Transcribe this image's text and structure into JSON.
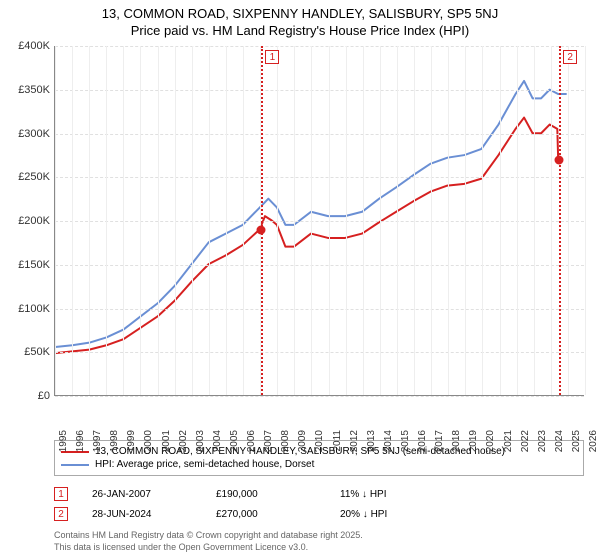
{
  "title_line1": "13, COMMON ROAD, SIXPENNY HANDLEY, SALISBURY, SP5 5NJ",
  "title_line2": "Price paid vs. HM Land Registry's House Price Index (HPI)",
  "chart": {
    "type": "line",
    "x_years": [
      1995,
      1996,
      1997,
      1998,
      1999,
      2000,
      2001,
      2002,
      2003,
      2004,
      2005,
      2006,
      2007,
      2008,
      2009,
      2010,
      2011,
      2012,
      2013,
      2014,
      2015,
      2016,
      2017,
      2018,
      2019,
      2020,
      2021,
      2022,
      2023,
      2024,
      2025,
      2026
    ],
    "x_domain": [
      1995,
      2026
    ],
    "y_domain": [
      0,
      400000
    ],
    "y_ticks": [
      0,
      50000,
      100000,
      150000,
      200000,
      250000,
      300000,
      350000,
      400000
    ],
    "y_tick_labels": [
      "£0",
      "£50K",
      "£100K",
      "£150K",
      "£200K",
      "£250K",
      "£300K",
      "£350K",
      "£400K"
    ],
    "grid_color": "#e0e0e0",
    "background": "#ffffff",
    "series": {
      "hpi": {
        "label": "HPI: Average price, semi-detached house, Dorset",
        "color": "#6a8fd4",
        "width": 2,
        "points": [
          [
            1995,
            55000
          ],
          [
            1996,
            57000
          ],
          [
            1997,
            60000
          ],
          [
            1998,
            66000
          ],
          [
            1999,
            75000
          ],
          [
            2000,
            90000
          ],
          [
            2001,
            105000
          ],
          [
            2002,
            125000
          ],
          [
            2003,
            150000
          ],
          [
            2004,
            175000
          ],
          [
            2005,
            185000
          ],
          [
            2006,
            195000
          ],
          [
            2007,
            215000
          ],
          [
            2007.5,
            225000
          ],
          [
            2008,
            215000
          ],
          [
            2008.5,
            195000
          ],
          [
            2009,
            195000
          ],
          [
            2010,
            210000
          ],
          [
            2011,
            205000
          ],
          [
            2012,
            205000
          ],
          [
            2013,
            210000
          ],
          [
            2014,
            225000
          ],
          [
            2015,
            238000
          ],
          [
            2016,
            252000
          ],
          [
            2017,
            265000
          ],
          [
            2018,
            272000
          ],
          [
            2019,
            275000
          ],
          [
            2020,
            282000
          ],
          [
            2021,
            310000
          ],
          [
            2022,
            345000
          ],
          [
            2022.5,
            360000
          ],
          [
            2023,
            340000
          ],
          [
            2023.5,
            340000
          ],
          [
            2024,
            350000
          ],
          [
            2024.5,
            345000
          ],
          [
            2025,
            345000
          ]
        ]
      },
      "property": {
        "label": "13, COMMON ROAD, SIXPENNY HANDLEY, SALISBURY, SP5 5NJ (semi-detached house)",
        "color": "#d62020",
        "width": 2,
        "points": [
          [
            1995,
            48000
          ],
          [
            1996,
            50000
          ],
          [
            1997,
            52000
          ],
          [
            1998,
            57000
          ],
          [
            1999,
            64000
          ],
          [
            2000,
            77000
          ],
          [
            2001,
            90000
          ],
          [
            2002,
            108000
          ],
          [
            2003,
            130000
          ],
          [
            2004,
            150000
          ],
          [
            2005,
            160000
          ],
          [
            2006,
            172000
          ],
          [
            2007,
            190000
          ],
          [
            2007.3,
            205000
          ],
          [
            2007.7,
            200000
          ],
          [
            2008,
            195000
          ],
          [
            2008.5,
            170000
          ],
          [
            2009,
            170000
          ],
          [
            2010,
            185000
          ],
          [
            2011,
            180000
          ],
          [
            2012,
            180000
          ],
          [
            2013,
            185000
          ],
          [
            2014,
            198000
          ],
          [
            2015,
            210000
          ],
          [
            2016,
            222000
          ],
          [
            2017,
            233000
          ],
          [
            2018,
            240000
          ],
          [
            2019,
            242000
          ],
          [
            2020,
            248000
          ],
          [
            2021,
            275000
          ],
          [
            2022,
            305000
          ],
          [
            2022.5,
            318000
          ],
          [
            2023,
            300000
          ],
          [
            2023.5,
            300000
          ],
          [
            2024,
            310000
          ],
          [
            2024.45,
            305000
          ],
          [
            2024.5,
            270000
          ]
        ]
      }
    },
    "sale_markers": [
      {
        "num": "1",
        "year": 2007.07,
        "value": 190000,
        "color": "#d62020"
      },
      {
        "num": "2",
        "year": 2024.49,
        "value": 270000,
        "color": "#d62020"
      }
    ]
  },
  "sales": [
    {
      "num": "1",
      "date": "26-JAN-2007",
      "price": "£190,000",
      "diff": "11% ↓ HPI",
      "color": "#d62020"
    },
    {
      "num": "2",
      "date": "28-JUN-2024",
      "price": "£270,000",
      "diff": "20% ↓ HPI",
      "color": "#d62020"
    }
  ],
  "footer_line1": "Contains HM Land Registry data © Crown copyright and database right 2025.",
  "footer_line2": "This data is licensed under the Open Government Licence v3.0."
}
